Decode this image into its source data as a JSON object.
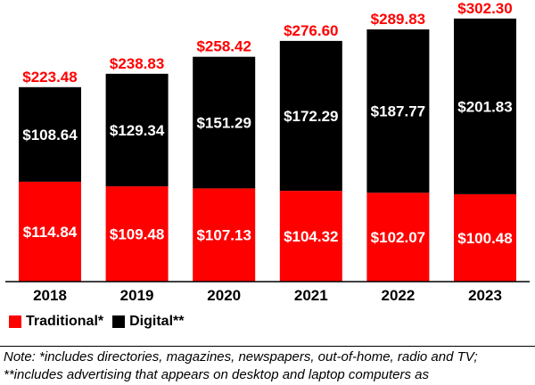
{
  "chart_data": {
    "type": "bar",
    "stacked": true,
    "categories": [
      "2018",
      "2019",
      "2020",
      "2021",
      "2022",
      "2023"
    ],
    "series": [
      {
        "name": "Traditional*",
        "color": "#ff0000",
        "values": [
          114.84,
          109.48,
          107.13,
          104.32,
          102.07,
          100.48
        ],
        "labels": [
          "$114.84",
          "$109.48",
          "$107.13",
          "$104.32",
          "$102.07",
          "$100.48"
        ]
      },
      {
        "name": "Digital**",
        "color": "#000000",
        "values": [
          108.64,
          129.34,
          151.29,
          172.29,
          187.77,
          201.83
        ],
        "labels": [
          "$108.64",
          "$129.34",
          "$151.29",
          "$172.29",
          "$187.77",
          "$201.83"
        ]
      }
    ],
    "totals": [
      223.48,
      238.83,
      258.42,
      276.6,
      289.83,
      302.3
    ],
    "total_labels": [
      "$223.48",
      "$238.83",
      "$258.42",
      "$276.60",
      "$289.83",
      "$302.30"
    ],
    "total_label_color": "#ff0000",
    "legend_position": "bottom-left"
  },
  "legend": {
    "traditional": "Traditional*",
    "digital": "Digital**"
  },
  "note": "Note: *includes directories, magazines, newspapers, out-of-home, radio and TV; **includes advertising that appears on desktop and laptop computers as"
}
